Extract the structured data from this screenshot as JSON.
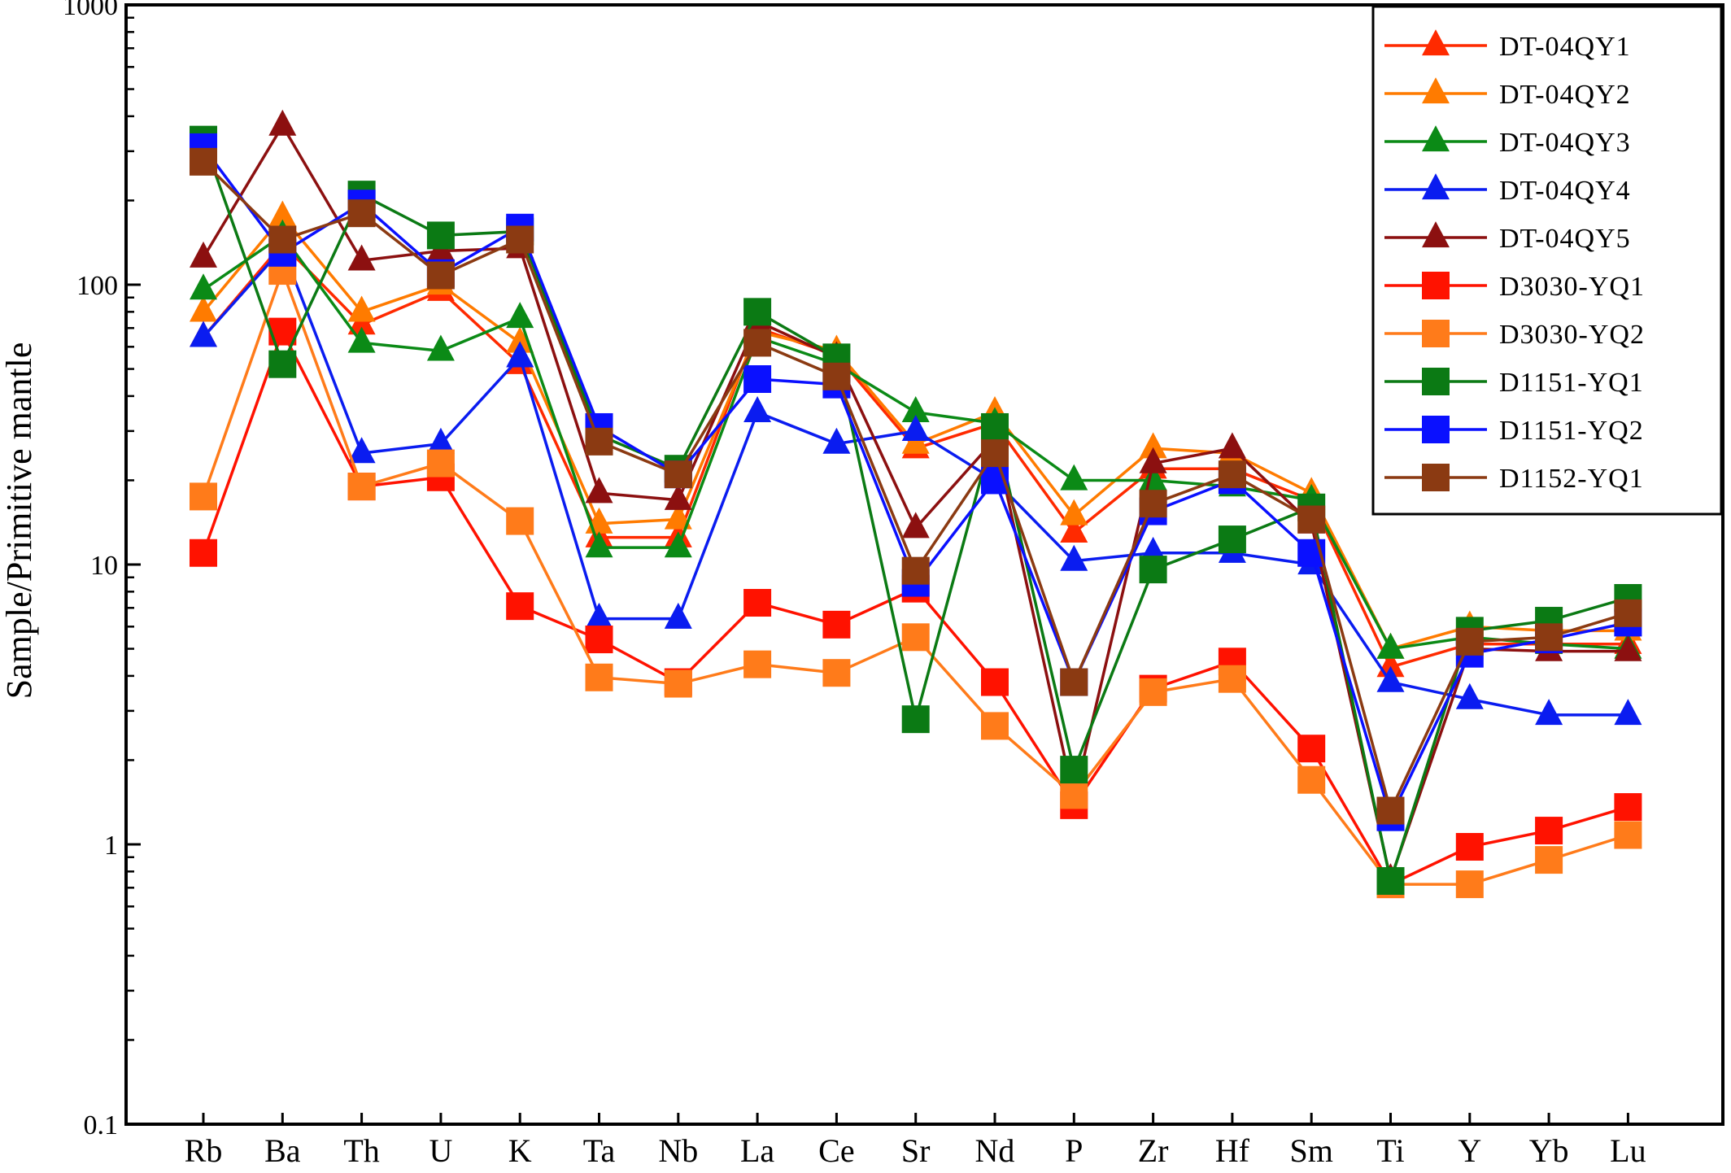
{
  "chart_data": {
    "type": "line",
    "ylabel": "Sample/Primitive mantle",
    "xlabel": "",
    "yscale": "log",
    "ylim": [
      0.1,
      1000
    ],
    "ytick_labels": [
      "0.1",
      "1",
      "10",
      "100",
      "1000"
    ],
    "legend_position": "top-right",
    "categories": [
      "Rb",
      "Ba",
      "Th",
      "U",
      "K",
      "Ta",
      "Nb",
      "La",
      "Ce",
      "Sr",
      "Nd",
      "P",
      "Zr",
      "Hf",
      "Sm",
      "Ti",
      "Y",
      "Yb",
      "Lu"
    ],
    "series": [
      {
        "name": "DT-04QY1",
        "marker": "triangle",
        "color": "#ff2a00",
        "values": [
          65,
          140,
          72,
          95,
          52,
          12.5,
          12.5,
          70,
          56,
          26,
          32,
          13,
          22,
          22,
          17,
          4.3,
          5.2,
          5.2,
          5.2
        ]
      },
      {
        "name": "DT-04QY2",
        "marker": "triangle",
        "color": "#ff7b00",
        "values": [
          80,
          175,
          80,
          100,
          62,
          14,
          14.5,
          68,
          58,
          27,
          35,
          15,
          26,
          25,
          18,
          5,
          6,
          5.8,
          5.8
        ]
      },
      {
        "name": "DT-04QY3",
        "marker": "triangle",
        "color": "#0b8a16",
        "values": [
          96,
          150,
          62,
          58,
          76,
          11.5,
          11.5,
          65,
          52,
          35,
          32,
          20,
          20,
          19,
          17,
          5,
          5.5,
          5.2,
          5
        ]
      },
      {
        "name": "DT-04QY4",
        "marker": "triangle",
        "color": "#0a1cf0",
        "values": [
          65,
          135,
          25,
          27,
          55,
          6.4,
          6.4,
          35,
          27,
          30,
          20,
          10.3,
          11,
          11,
          10,
          3.8,
          3.3,
          2.9,
          2.9
        ]
      },
      {
        "name": "DT-04QY5",
        "marker": "triangle",
        "color": "#8c1010",
        "values": [
          125,
          370,
          122,
          132,
          135,
          18,
          17,
          74,
          55,
          13.5,
          28,
          1.45,
          23,
          26,
          14,
          0.75,
          5,
          4.9,
          4.9
        ]
      },
      {
        "name": "D3030-YQ1",
        "marker": "square",
        "color": "#ff1200",
        "values": [
          11,
          68,
          19,
          20.5,
          7.1,
          5.4,
          3.8,
          7.3,
          6.1,
          8.2,
          3.8,
          1.38,
          3.6,
          4.5,
          2.2,
          0.72,
          0.98,
          1.12,
          1.36
        ]
      },
      {
        "name": "D3030-YQ2",
        "marker": "square",
        "color": "#ff7b1a",
        "values": [
          17.5,
          112,
          19,
          23,
          14.3,
          3.95,
          3.75,
          4.4,
          4.1,
          5.5,
          2.65,
          1.5,
          3.5,
          3.9,
          1.7,
          0.72,
          0.72,
          0.88,
          1.08
        ]
      },
      {
        "name": "D1151-YQ1",
        "marker": "square",
        "color": "#0b7a14",
        "values": [
          330,
          52,
          210,
          150,
          155,
          29,
          22,
          80,
          55,
          2.8,
          31,
          1.85,
          9.6,
          12.3,
          16,
          0.74,
          5.8,
          6.3,
          7.6
        ]
      },
      {
        "name": "D1151-YQ2",
        "marker": "square",
        "color": "#0a10ff",
        "values": [
          310,
          130,
          195,
          110,
          160,
          31,
          21,
          46,
          44,
          8.6,
          20,
          3.8,
          15.5,
          20,
          11,
          1.25,
          4.8,
          5.4,
          6.2
        ]
      },
      {
        "name": "D1152-YQ1",
        "marker": "square",
        "color": "#8b3a12",
        "values": [
          275,
          145,
          180,
          108,
          145,
          27.5,
          21,
          62,
          47,
          9.5,
          25,
          3.8,
          16.5,
          21,
          14.5,
          1.32,
          5.3,
          5.5,
          6.7
        ]
      }
    ]
  }
}
